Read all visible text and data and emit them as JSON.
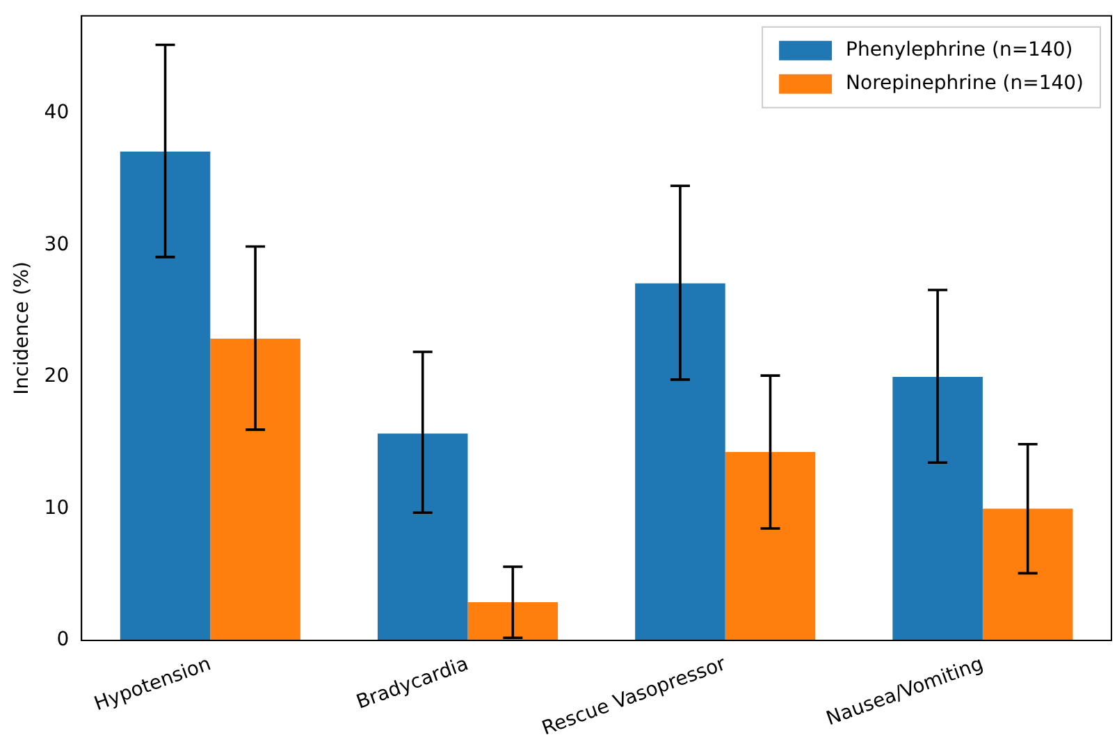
{
  "chart_data": {
    "type": "bar",
    "ylabel": "Incidence (%)",
    "categories": [
      "Hypotension",
      "Bradycardia",
      "Rescue Vasopressor",
      "Nausea/Vomiting"
    ],
    "series": [
      {
        "name": "Phenylephrine (n=140)",
        "color": "#1f77b4",
        "values": [
          37.1,
          15.7,
          27.1,
          20.0
        ],
        "errors": [
          [
            29.1,
            45.2
          ],
          [
            9.7,
            21.9
          ],
          [
            19.8,
            34.5
          ],
          [
            13.5,
            26.6
          ]
        ]
      },
      {
        "name": "Norepinephrine (n=140)",
        "color": "#ff7f0e",
        "values": [
          22.9,
          2.9,
          14.3,
          10.0
        ],
        "errors": [
          [
            16.0,
            29.9
          ],
          [
            0.2,
            5.6
          ],
          [
            8.5,
            20.1
          ],
          [
            5.1,
            14.9
          ]
        ]
      }
    ],
    "ylim": [
      0,
      47.4
    ],
    "yticks": [
      0,
      10,
      20,
      30,
      40
    ],
    "grid": false,
    "legend": "top right"
  }
}
